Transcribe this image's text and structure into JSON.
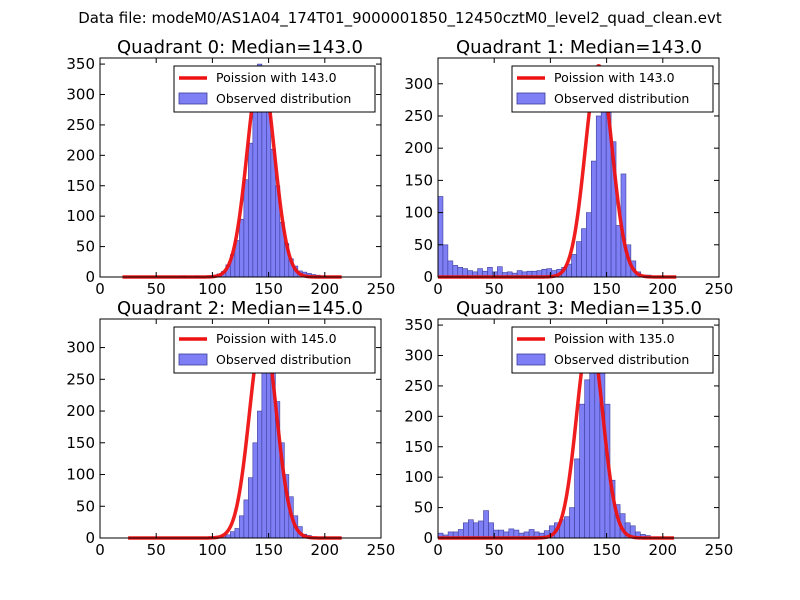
{
  "figure": {
    "suptitle": "Data file: modeM0/AS1A04_174T01_9000001850_12450cztM0_level2_quad_clean.evt",
    "colors": {
      "bars": "#7f7ff5",
      "bar_edge": "#3c3c9a",
      "poisson_line": "#ee1111"
    }
  },
  "chart_data": [
    {
      "type": "bar",
      "title": "Quadrant 0: Median=143.0",
      "xlim": [
        0,
        250
      ],
      "ylim": [
        0,
        360
      ],
      "xticks": [
        0,
        50,
        100,
        150,
        200,
        250
      ],
      "yticks": [
        0,
        50,
        100,
        150,
        200,
        250,
        300,
        350
      ],
      "legend": {
        "placement": "top-right",
        "line_label": "Poission with 143.0",
        "bar_label": "Observed distribution"
      },
      "poisson": {
        "mean": 143.0,
        "peak": 345,
        "x_range": [
          20,
          215
        ]
      },
      "bin_width": 4,
      "bins": [
        [
          72,
          2
        ],
        [
          84,
          2
        ],
        [
          96,
          2
        ],
        [
          100,
          3
        ],
        [
          104,
          5
        ],
        [
          108,
          9
        ],
        [
          112,
          20
        ],
        [
          116,
          37
        ],
        [
          120,
          60
        ],
        [
          124,
          95
        ],
        [
          128,
          160
        ],
        [
          132,
          220
        ],
        [
          136,
          300
        ],
        [
          140,
          350
        ],
        [
          144,
          335
        ],
        [
          148,
          285
        ],
        [
          152,
          210
        ],
        [
          156,
          150
        ],
        [
          160,
          90
        ],
        [
          164,
          55
        ],
        [
          168,
          30
        ],
        [
          172,
          18
        ],
        [
          176,
          10
        ],
        [
          180,
          8
        ],
        [
          184,
          6
        ],
        [
          188,
          4
        ],
        [
          192,
          3
        ],
        [
          196,
          2
        ]
      ]
    },
    {
      "type": "bar",
      "title": "Quadrant 1: Median=143.0",
      "xlim": [
        0,
        250
      ],
      "ylim": [
        0,
        340
      ],
      "xticks": [
        0,
        50,
        100,
        150,
        200,
        250
      ],
      "yticks": [
        0,
        50,
        100,
        150,
        200,
        250,
        300
      ],
      "legend": {
        "placement": "top-right",
        "line_label": "Poission with 143.0",
        "bar_label": "Observed distribution"
      },
      "poisson": {
        "mean": 143.0,
        "peak": 328,
        "x_range": [
          0,
          212
        ]
      },
      "bin_width": 4.4,
      "bins": [
        [
          0,
          125
        ],
        [
          4.4,
          50
        ],
        [
          8.8,
          25
        ],
        [
          13.2,
          18
        ],
        [
          17.6,
          15
        ],
        [
          22,
          13
        ],
        [
          26.4,
          10
        ],
        [
          30.8,
          8
        ],
        [
          35.2,
          13
        ],
        [
          39.6,
          9
        ],
        [
          44,
          15
        ],
        [
          48.4,
          8
        ],
        [
          52.8,
          16
        ],
        [
          57.2,
          7
        ],
        [
          61.6,
          8
        ],
        [
          66,
          6
        ],
        [
          70.4,
          10
        ],
        [
          74.8,
          8
        ],
        [
          79.2,
          9
        ],
        [
          83.6,
          9
        ],
        [
          88,
          10
        ],
        [
          92.4,
          12
        ],
        [
          96.8,
          13
        ],
        [
          101.2,
          10
        ],
        [
          105.6,
          12
        ],
        [
          110,
          15
        ],
        [
          114.4,
          20
        ],
        [
          118.8,
          35
        ],
        [
          123.2,
          55
        ],
        [
          127.6,
          75
        ],
        [
          132,
          100
        ],
        [
          136.4,
          180
        ],
        [
          140.8,
          250
        ],
        [
          145.2,
          300
        ],
        [
          149.6,
          270
        ],
        [
          154,
          210
        ],
        [
          158.4,
          80
        ],
        [
          162.8,
          160
        ],
        [
          167.2,
          50
        ],
        [
          171.6,
          25
        ],
        [
          176,
          8
        ],
        [
          180.4,
          3
        ],
        [
          184.8,
          3
        ]
      ]
    },
    {
      "type": "bar",
      "title": "Quadrant 2: Median=145.0",
      "xlim": [
        0,
        250
      ],
      "ylim": [
        0,
        345
      ],
      "xticks": [
        0,
        50,
        100,
        150,
        200,
        250
      ],
      "yticks": [
        0,
        50,
        100,
        150,
        200,
        250,
        300
      ],
      "legend": {
        "placement": "top-right",
        "line_label": "Poission with 145.0",
        "bar_label": "Observed distribution"
      },
      "poisson": {
        "mean": 145.0,
        "peak": 325,
        "x_range": [
          25,
          215
        ]
      },
      "bin_width": 4,
      "bins": [
        [
          96,
          2
        ],
        [
          104,
          2
        ],
        [
          108,
          3
        ],
        [
          112,
          5
        ],
        [
          116,
          10
        ],
        [
          120,
          15
        ],
        [
          124,
          35
        ],
        [
          128,
          60
        ],
        [
          132,
          95
        ],
        [
          136,
          150
        ],
        [
          140,
          200
        ],
        [
          144,
          310
        ],
        [
          148,
          325
        ],
        [
          152,
          280
        ],
        [
          156,
          215
        ],
        [
          160,
          150
        ],
        [
          164,
          100
        ],
        [
          168,
          65
        ],
        [
          172,
          35
        ],
        [
          176,
          18
        ],
        [
          180,
          6
        ],
        [
          184,
          4
        ]
      ]
    },
    {
      "type": "bar",
      "title": "Quadrant 3: Median=135.0",
      "xlim": [
        0,
        250
      ],
      "ylim": [
        0,
        360
      ],
      "xticks": [
        0,
        50,
        100,
        150,
        200,
        250
      ],
      "yticks": [
        0,
        50,
        100,
        150,
        200,
        250,
        300,
        350
      ],
      "legend": {
        "placement": "top-right",
        "line_label": "Poission with 135.0",
        "bar_label": "Observed distribution"
      },
      "poisson": {
        "mean": 135.0,
        "peak": 335,
        "x_range": [
          0,
          210
        ]
      },
      "bin_width": 4.5,
      "bins": [
        [
          0,
          8
        ],
        [
          4.5,
          5
        ],
        [
          9,
          10
        ],
        [
          13.5,
          10
        ],
        [
          18,
          14
        ],
        [
          22.5,
          25
        ],
        [
          27,
          30
        ],
        [
          31.5,
          25
        ],
        [
          36,
          28
        ],
        [
          40.5,
          45
        ],
        [
          45,
          25
        ],
        [
          49.5,
          13
        ],
        [
          54,
          13
        ],
        [
          58.5,
          10
        ],
        [
          63,
          15
        ],
        [
          67.5,
          13
        ],
        [
          72,
          8
        ],
        [
          76.5,
          10
        ],
        [
          81,
          14
        ],
        [
          85.5,
          10
        ],
        [
          90,
          8
        ],
        [
          94.5,
          12
        ],
        [
          99,
          20
        ],
        [
          103.5,
          25
        ],
        [
          108,
          30
        ],
        [
          112.5,
          35
        ],
        [
          117,
          50
        ],
        [
          121.5,
          130
        ],
        [
          126,
          220
        ],
        [
          130.5,
          260
        ],
        [
          135,
          315
        ],
        [
          139.5,
          330
        ],
        [
          144,
          280
        ],
        [
          148.5,
          220
        ],
        [
          153,
          95
        ],
        [
          157.5,
          55
        ],
        [
          162,
          40
        ],
        [
          166.5,
          25
        ],
        [
          171,
          20
        ],
        [
          175.5,
          10
        ],
        [
          180,
          6
        ],
        [
          184.5,
          4
        ]
      ]
    }
  ]
}
